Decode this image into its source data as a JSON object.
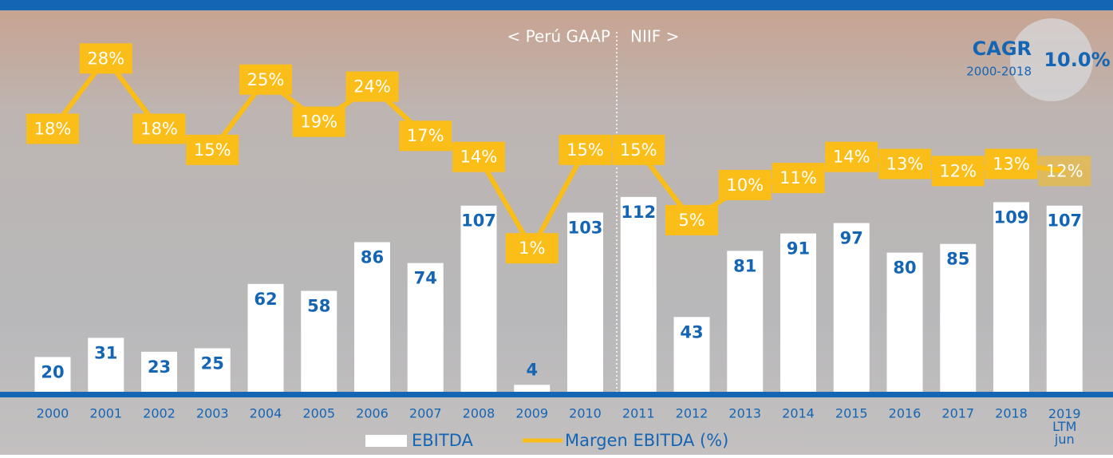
{
  "chart_data": {
    "type": "bar_line",
    "categories": [
      "2000",
      "2001",
      "2002",
      "2003",
      "2004",
      "2005",
      "2006",
      "2007",
      "2008",
      "2009",
      "2010",
      "2011",
      "2012",
      "2013",
      "2014",
      "2015",
      "2016",
      "2017",
      "2018",
      "2019 LTM jun"
    ],
    "series": [
      {
        "name": "EBITDA",
        "type": "bar",
        "color": "#ffffff",
        "label_color": "#1565b5",
        "values": [
          20,
          31,
          23,
          25,
          62,
          58,
          86,
          74,
          107,
          4,
          103,
          112,
          43,
          81,
          91,
          97,
          80,
          85,
          109,
          107
        ]
      },
      {
        "name": "Margen EBITDA (%)",
        "type": "line",
        "color": "#fbbd17",
        "label_color": "#ffffff",
        "values": [
          18,
          28,
          18,
          15,
          25,
          19,
          24,
          17,
          14,
          1,
          15,
          15,
          5,
          10,
          11,
          14,
          13,
          12,
          13,
          12
        ],
        "value_labels": [
          "18%",
          "28%",
          "18%",
          "15%",
          "25%",
          "19%",
          "24%",
          "17%",
          "14%",
          "1%",
          "15%",
          "15%",
          "5%",
          "10%",
          "11%",
          "14%",
          "13%",
          "12%",
          "13%",
          "12%"
        ]
      }
    ],
    "annotations": {
      "left_regime": "< Perú GAAP",
      "right_regime": "NIIF >",
      "cagr_title": "CAGR",
      "cagr_period": "2000-2018",
      "cagr_value": "10.0%"
    }
  }
}
